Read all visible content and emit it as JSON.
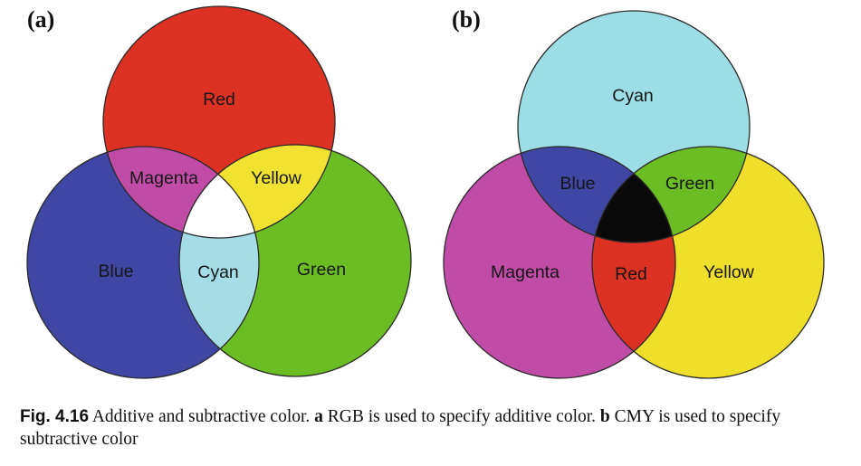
{
  "panel_a": {
    "letter": "(a)",
    "labels": {
      "red": "Red",
      "blue": "Blue",
      "green": "Green",
      "magenta": "Magenta",
      "yellow": "Yellow",
      "cyan": "Cyan"
    },
    "colors": {
      "red": "#dc3123",
      "blue": "#3f46a4",
      "green": "#6bbd24",
      "magenta": "#c04ca8",
      "yellow": "#f1e232",
      "cyan": "#a4dde5",
      "center": "#ffffff"
    }
  },
  "panel_b": {
    "letter": "(b)",
    "labels": {
      "cyan": "Cyan",
      "magenta": "Magenta",
      "yellow": "Yellow",
      "blue": "Blue",
      "green": "Green",
      "red": "Red"
    },
    "colors": {
      "cyan": "#9ddde6",
      "magenta": "#c04ca8",
      "yellow": "#efdf2a",
      "blue": "#3f46a4",
      "green": "#6bbd24",
      "red": "#dc3123",
      "center": "#0a0a0a"
    }
  },
  "caption": {
    "fig_number": "Fig. 4.16",
    "text_1": "Additive and subtractive color.",
    "a": "a",
    "text_2": "RGB is used to specify additive color.",
    "b": "b",
    "text_3": "CMY is used to specify subtractive color"
  }
}
